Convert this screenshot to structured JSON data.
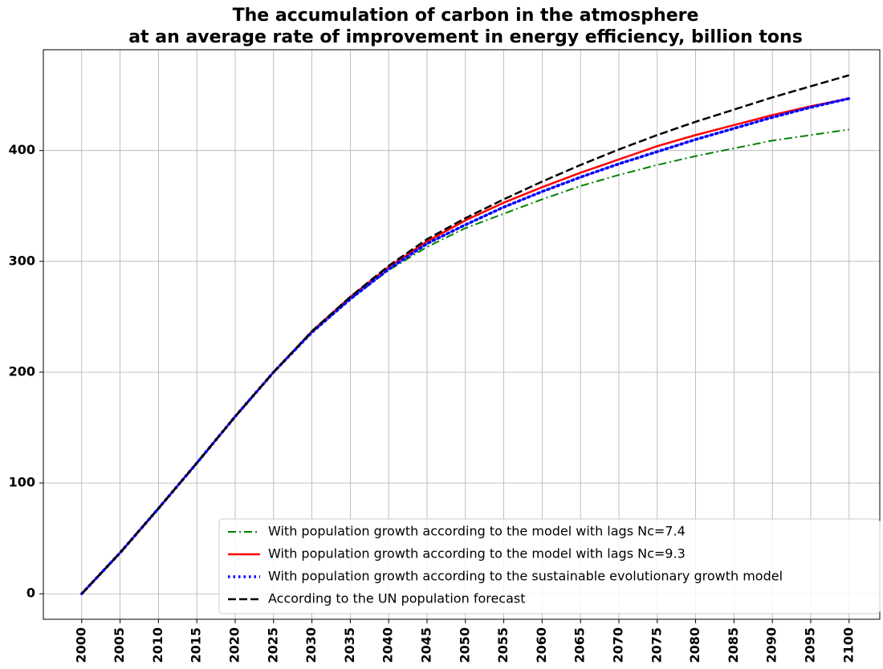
{
  "chart_data": {
    "type": "line",
    "title": [
      "The accumulation of carbon in the atmosphere",
      "at an average rate of improvement in energy efficiency, billion tons"
    ],
    "x": [
      2000,
      2005,
      2010,
      2015,
      2020,
      2025,
      2030,
      2035,
      2040,
      2045,
      2050,
      2055,
      2060,
      2065,
      2070,
      2075,
      2080,
      2085,
      2090,
      2095,
      2100
    ],
    "series": [
      {
        "name": "With population growth according to the model with lags Nc=7.4",
        "color": "#008000",
        "linestyle": "dashdot",
        "values": [
          0,
          37,
          77,
          118,
          160,
          200,
          236,
          266,
          292,
          313,
          330,
          343,
          356,
          368,
          378,
          387,
          395,
          402,
          409,
          414,
          419
        ]
      },
      {
        "name": "With population growth according to the model with lags Nc=9.3",
        "color": "#ff0000",
        "linestyle": "solid",
        "values": [
          0,
          37,
          77,
          118,
          160,
          200,
          237,
          268,
          295,
          318,
          337,
          353,
          367,
          380,
          392,
          404,
          414,
          423,
          432,
          440,
          447
        ]
      },
      {
        "name": "With population growth according to the sustainable evolutionary growth model",
        "color": "#0000ff",
        "linestyle": "dotted",
        "values": [
          0,
          37,
          77,
          118,
          160,
          200,
          236,
          266,
          293,
          316,
          333,
          349,
          363,
          376,
          388,
          399,
          410,
          420,
          430,
          439,
          447
        ]
      },
      {
        "name": "According to the UN population forecast",
        "color": "#000000",
        "linestyle": "dashed",
        "values": [
          0,
          37,
          77,
          118,
          160,
          200,
          237,
          268,
          296,
          320,
          339,
          356,
          372,
          387,
          401,
          414,
          426,
          437,
          448,
          458,
          468
        ]
      }
    ],
    "xlim": [
      1995,
      2104
    ],
    "xticks": [
      2000,
      2005,
      2010,
      2015,
      2020,
      2025,
      2030,
      2035,
      2040,
      2045,
      2050,
      2055,
      2060,
      2065,
      2070,
      2075,
      2080,
      2085,
      2090,
      2095,
      2100
    ],
    "ylim": [
      -23,
      491
    ],
    "yticks": [
      0,
      100,
      200,
      300,
      400
    ],
    "grid": true,
    "legend": "lower right"
  }
}
